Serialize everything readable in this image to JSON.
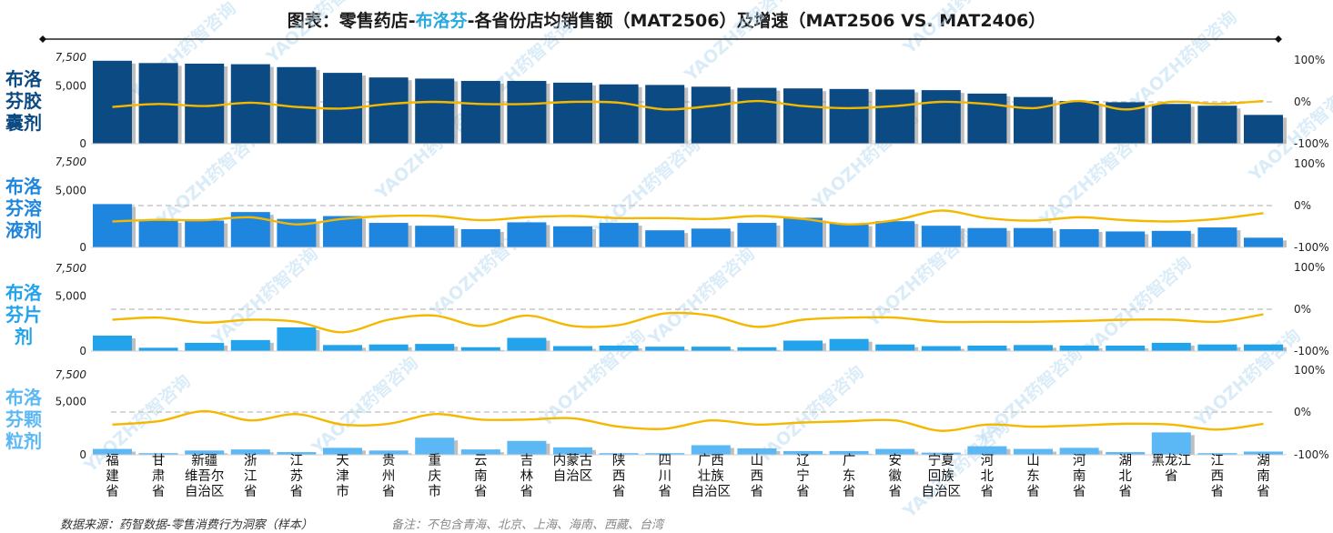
{
  "title": {
    "prefix": "图表：零售药店-",
    "highlight": "布洛芬",
    "suffix": "-各省份店均销售额（MAT2506）及增速（MAT2506 VS. MAT2406）"
  },
  "footer": {
    "source": "数据来源：药智数据-零售消费行为洞察（样本）",
    "note": "备注：不包含青海、北京、上海、海南、西藏、台湾"
  },
  "watermark": "YAOZH药智咨询",
  "colors": {
    "panel1": "#0b4a82",
    "panel2": "#1f86e0",
    "panel3": "#22a3ec",
    "panel4": "#5cb8f5",
    "line": "#f5b800",
    "shadow": "#8a8a8a"
  },
  "chart_data": {
    "type": "bar",
    "categories": [
      "福\n建\n省",
      "甘\n肃\n省",
      "新疆\n维吾尔\n自治区",
      "浙\n江\n省",
      "江\n苏\n省",
      "天\n津\n市",
      "贵\n州\n省",
      "重\n庆\n市",
      "云\n南\n省",
      "吉\n林\n省",
      "内蒙古\n自治区",
      "陕\n西\n省",
      "四\n川\n省",
      "广西\n壮族\n自治区",
      "山\n西\n省",
      "辽\n宁\n省",
      "广\n东\n省",
      "安\n徽\n省",
      "宁夏\n回族\n自治区",
      "河\n北\n省",
      "山\n东\n省",
      "河\n南\n省",
      "湖\n北\n省",
      "黑龙江\n省",
      "江\n西\n省",
      "湖\n南\n省"
    ],
    "left_axis": {
      "ylim": [
        0,
        7500
      ],
      "ticks": [
        "0",
        "5,000",
        "7,500"
      ]
    },
    "right_axis": {
      "ylim": [
        -100,
        100
      ],
      "ticks": [
        "-100%",
        "0%",
        "100%"
      ]
    },
    "panels": [
      {
        "name": "布洛芬胶囊剂",
        "label_lines": [
          "布洛",
          "芬胶",
          "囊剂"
        ],
        "bar_values": [
          7200,
          7000,
          6950,
          6900,
          6650,
          6150,
          5750,
          5650,
          5450,
          5450,
          5300,
          5150,
          5100,
          4950,
          4850,
          4800,
          4750,
          4700,
          4650,
          4350,
          4050,
          3700,
          3600,
          3450,
          3300,
          2500
        ],
        "growth": [
          -12,
          -5,
          -10,
          -2,
          -12,
          -16,
          -5,
          0,
          -5,
          -5,
          0,
          -2,
          -18,
          -10,
          2,
          -10,
          -15,
          -10,
          0,
          -5,
          -15,
          2,
          -18,
          0,
          -5,
          2
        ]
      },
      {
        "name": "布洛芬溶液剂",
        "label_lines": [
          "布洛",
          "芬溶",
          "液剂"
        ],
        "bar_values": [
          3800,
          2400,
          2350,
          3100,
          2500,
          2750,
          2150,
          1900,
          1600,
          2200,
          1850,
          2150,
          1500,
          1650,
          2150,
          2600,
          2100,
          2300,
          1900,
          1700,
          1700,
          1600,
          1400,
          1450,
          1750,
          850
        ],
        "growth": [
          -38,
          -34,
          -35,
          -28,
          -45,
          -32,
          -25,
          -25,
          -35,
          -28,
          -25,
          -30,
          -30,
          -32,
          -25,
          -32,
          -45,
          -35,
          -12,
          -30,
          -36,
          -28,
          -35,
          -38,
          -32,
          -18
        ]
      },
      {
        "name": "布洛芬片剂",
        "label_lines": [
          "布洛",
          "芬片",
          "剂"
        ],
        "bar_values": [
          1400,
          300,
          750,
          1000,
          2150,
          550,
          600,
          650,
          350,
          1200,
          450,
          500,
          400,
          400,
          350,
          950,
          1100,
          600,
          450,
          500,
          550,
          500,
          500,
          750,
          600,
          600
        ],
        "growth": [
          -25,
          -20,
          -32,
          -25,
          -30,
          -55,
          -25,
          -15,
          -40,
          -15,
          -40,
          -38,
          -10,
          -15,
          -42,
          -25,
          -20,
          -20,
          -30,
          -30,
          -30,
          -28,
          -25,
          -25,
          -30,
          -12
        ]
      },
      {
        "name": "布洛芬颗粒剂",
        "label_lines": [
          "布洛",
          "芬颗",
          "粒剂"
        ],
        "bar_values": [
          550,
          150,
          400,
          500,
          250,
          650,
          400,
          1600,
          500,
          1300,
          700,
          150,
          150,
          900,
          600,
          350,
          350,
          550,
          200,
          800,
          550,
          650,
          250,
          2100,
          150,
          300
        ],
        "growth": [
          -30,
          -22,
          2,
          -20,
          -5,
          -30,
          -28,
          -5,
          -18,
          -18,
          -15,
          -35,
          -40,
          -20,
          -30,
          -25,
          -22,
          -20,
          -45,
          -30,
          -35,
          -32,
          -28,
          -30,
          -42,
          -28
        ]
      }
    ]
  }
}
